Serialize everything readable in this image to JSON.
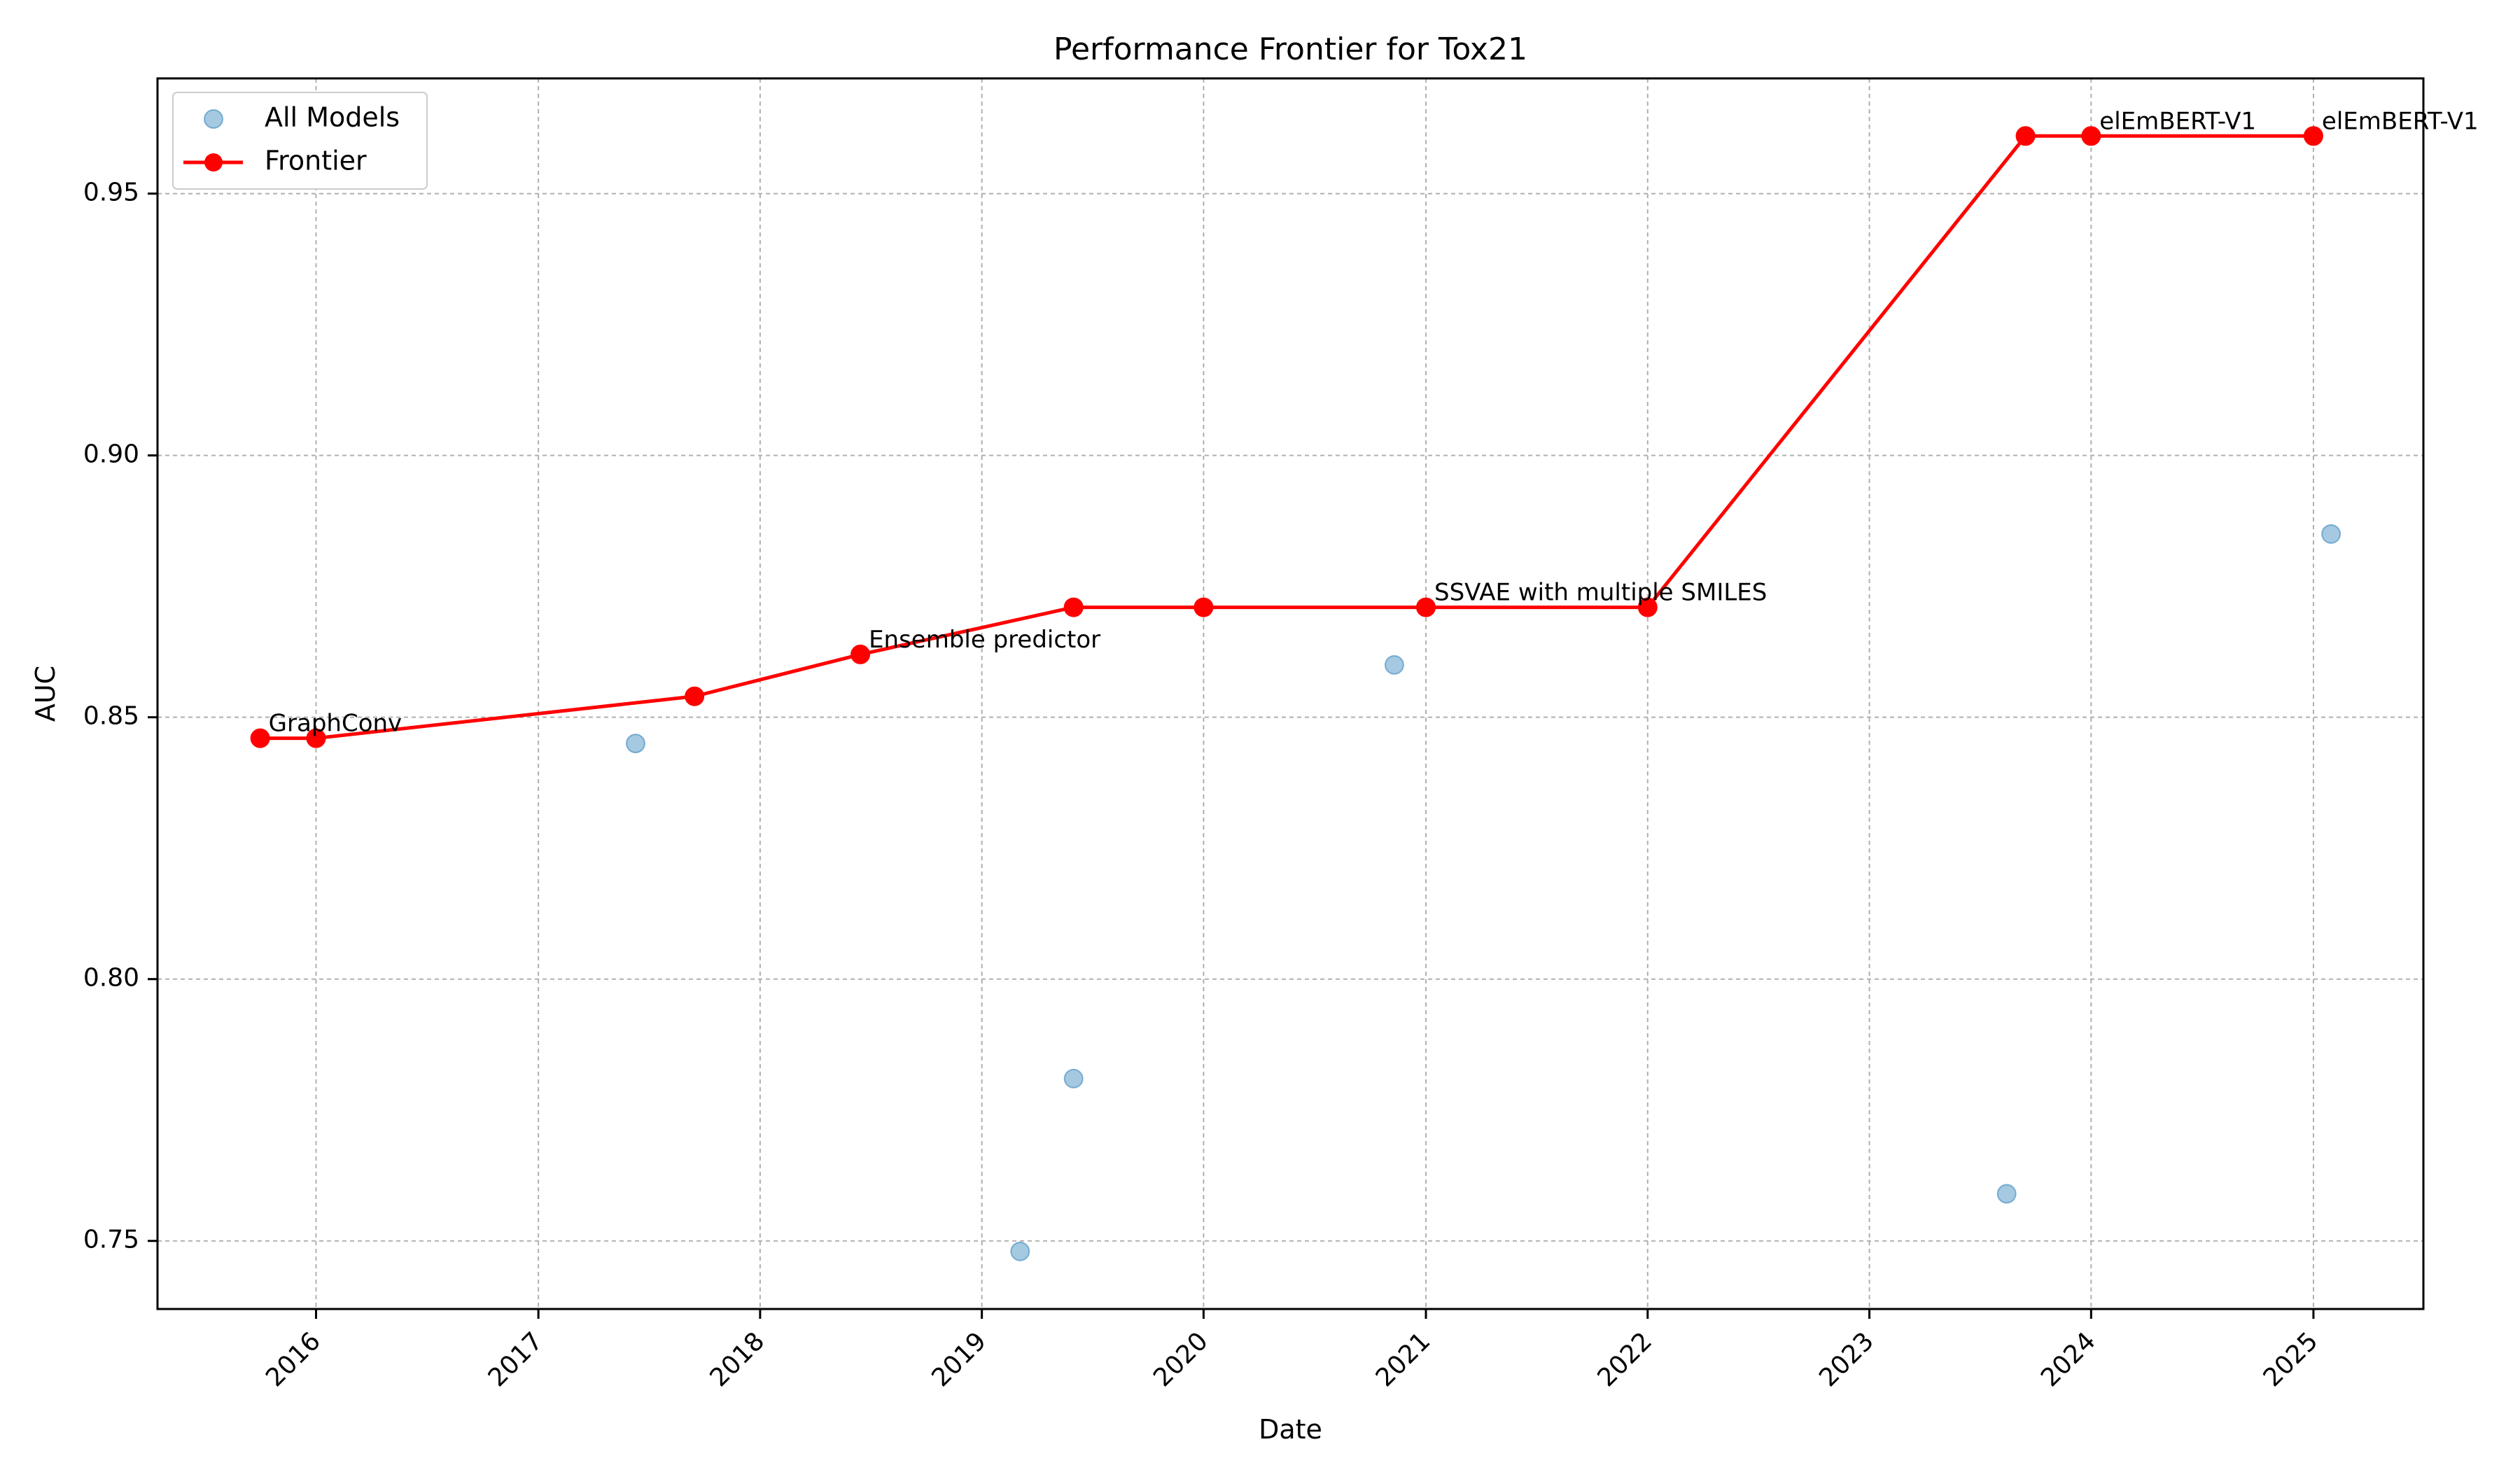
{
  "chart_data": {
    "type": "scatter",
    "title": "Performance Frontier for Tox21",
    "xlabel": "Date",
    "ylabel": "AUC",
    "x_type": "date",
    "xlim": [
      "2015-04-15",
      "2025-07-01"
    ],
    "ylim": [
      0.737,
      0.972
    ],
    "x_ticks": [
      "2016-01-01",
      "2017-01-01",
      "2018-01-01",
      "2019-01-01",
      "2020-01-01",
      "2021-01-01",
      "2022-01-01",
      "2023-01-01",
      "2024-01-01",
      "2025-01-01"
    ],
    "x_tick_labels": [
      "2016",
      "2017",
      "2018",
      "2019",
      "2020",
      "2021",
      "2022",
      "2023",
      "2024",
      "2025"
    ],
    "y_ticks": [
      0.75,
      0.8,
      0.85,
      0.9,
      0.95
    ],
    "y_tick_labels": [
      "0.75",
      "0.80",
      "0.85",
      "0.90",
      "0.95"
    ],
    "grid": true,
    "legend_position": "top-left",
    "series": [
      {
        "name": "All Models",
        "type": "scatter",
        "color": "#1f77b4",
        "points": [
          {
            "x": "2017-06-10",
            "y": 0.845
          },
          {
            "x": "2019-03-05",
            "y": 0.748
          },
          {
            "x": "2019-06-01",
            "y": 0.781
          },
          {
            "x": "2020-11-10",
            "y": 0.86
          },
          {
            "x": "2023-08-15",
            "y": 0.759
          },
          {
            "x": "2025-01-30",
            "y": 0.885
          }
        ]
      },
      {
        "name": "Frontier",
        "type": "line",
        "color": "#ff0000",
        "points": [
          {
            "x": "2015-10-01",
            "y": 0.846
          },
          {
            "x": "2016-01-01",
            "y": 0.846
          },
          {
            "x": "2017-09-15",
            "y": 0.854
          },
          {
            "x": "2018-06-15",
            "y": 0.862
          },
          {
            "x": "2019-06-01",
            "y": 0.871
          },
          {
            "x": "2020-01-01",
            "y": 0.871
          },
          {
            "x": "2021-01-01",
            "y": 0.871
          },
          {
            "x": "2022-01-01",
            "y": 0.871
          },
          {
            "x": "2023-09-15",
            "y": 0.961
          },
          {
            "x": "2024-01-01",
            "y": 0.961
          },
          {
            "x": "2025-01-01",
            "y": 0.961
          }
        ]
      }
    ],
    "annotations": [
      {
        "text": "GraphConv",
        "x": "2015-10-01",
        "y": 0.846
      },
      {
        "text": "Ensemble predictor",
        "x": "2018-06-15",
        "y": 0.862
      },
      {
        "text": "SSVAE with multiple SMILES",
        "x": "2021-01-01",
        "y": 0.871
      },
      {
        "text": "elEmBERT-V1",
        "x": "2024-01-01",
        "y": 0.961
      },
      {
        "text": "elEmBERT-V1",
        "x": "2025-01-01",
        "y": 0.961
      }
    ]
  }
}
